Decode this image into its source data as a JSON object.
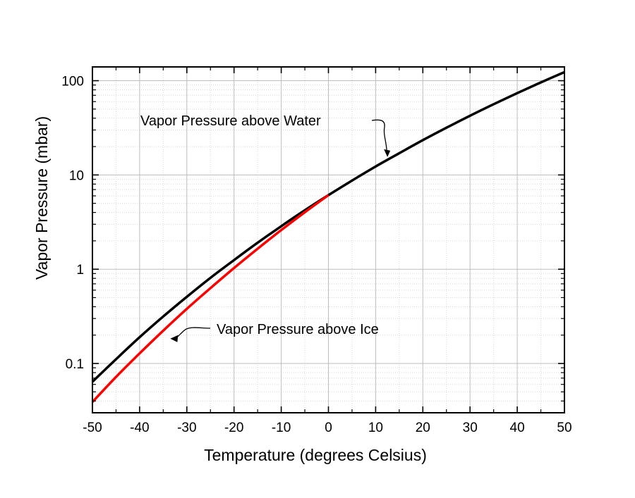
{
  "chart_data": {
    "type": "line",
    "xlabel": "Temperature (degrees Celsius)",
    "ylabel": "Vapor Pressure (mbar)",
    "xlim": [
      -50,
      50
    ],
    "ylim": [
      0.03,
      140
    ],
    "y_scale": "log",
    "grid": true,
    "x_ticks": [
      "-50",
      "-40",
      "-30",
      "-20",
      "-10",
      "0",
      "10",
      "20",
      "30",
      "40",
      "50"
    ],
    "y_ticks": [
      {
        "value": 0.1,
        "label": "0.1"
      },
      {
        "value": 1,
        "label": "1"
      },
      {
        "value": 10,
        "label": "10"
      },
      {
        "value": 100,
        "label": "100"
      }
    ],
    "series": [
      {
        "color": "#000000",
        "x": [
          -50,
          -45,
          -40,
          -35,
          -30,
          -25,
          -20,
          -15,
          -10,
          -5,
          0,
          5,
          10,
          15,
          20,
          25,
          30,
          35,
          40,
          45,
          50
        ],
        "y": [
          0.064,
          0.111,
          0.19,
          0.315,
          0.51,
          0.81,
          1.25,
          1.91,
          2.86,
          4.22,
          6.11,
          8.72,
          12.3,
          17.0,
          23.4,
          31.7,
          42.5,
          56.3,
          73.8,
          95.9,
          123.4
        ]
      },
      {
        "color": "#ff0000",
        "x": [
          -50,
          -45,
          -40,
          -35,
          -30,
          -25,
          -20,
          -15,
          -10,
          -5,
          0
        ],
        "y": [
          0.039,
          0.072,
          0.128,
          0.223,
          0.38,
          0.63,
          1.03,
          1.65,
          2.6,
          4.02,
          6.11
        ]
      }
    ],
    "annotations": [
      {
        "text": "Vapor Pressure above Water",
        "target_x": 12.5,
        "target_y": 15
      },
      {
        "text": "Vapor Pressure above Ice",
        "target_x": -35,
        "target_y": 0.2
      }
    ]
  }
}
